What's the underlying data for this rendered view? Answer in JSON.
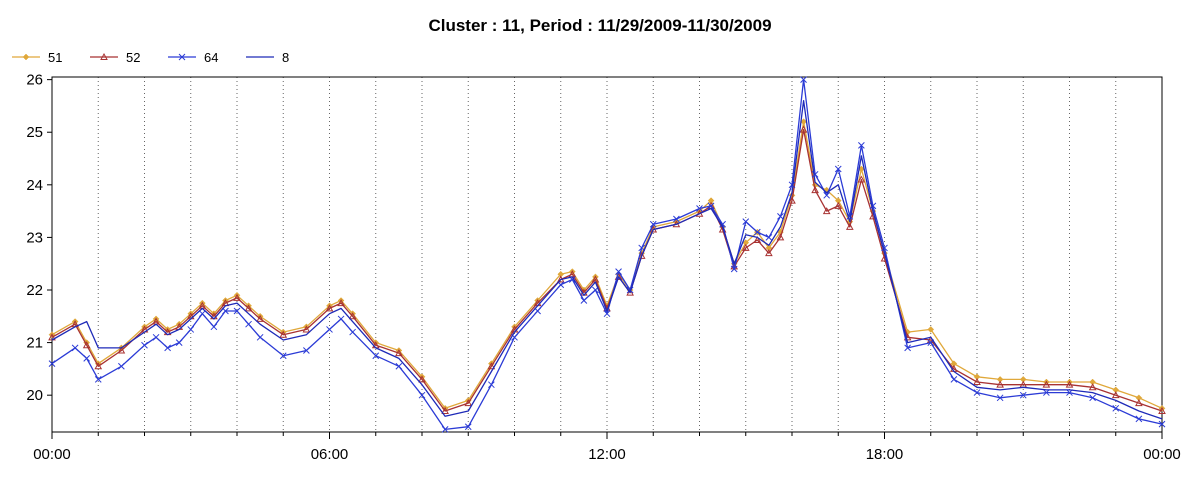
{
  "chart_data": {
    "type": "line",
    "title": "Cluster : 11, Period : 11/29/2009-11/30/2009",
    "xlabel": "",
    "ylabel": "",
    "x_tick_labels": [
      "00:00",
      "06:00",
      "12:00",
      "18:00",
      "00:00"
    ],
    "x_tick_hours": [
      0,
      6,
      12,
      18,
      24
    ],
    "x_range_hours": [
      0,
      24
    ],
    "y_ticks": [
      20,
      21,
      22,
      23,
      24,
      25,
      26
    ],
    "ylim": [
      19.3,
      26.05
    ],
    "grid": "dotted vertical, hourly",
    "legend_position": "top-left",
    "x": [
      0,
      0.5,
      0.75,
      1,
      1.5,
      2,
      2.25,
      2.5,
      2.75,
      3,
      3.25,
      3.5,
      3.75,
      4,
      4.25,
      4.5,
      5,
      5.5,
      6,
      6.25,
      6.5,
      7,
      7.5,
      8,
      8.5,
      9,
      9.5,
      10,
      10.5,
      11,
      11.25,
      11.5,
      11.75,
      12,
      12.25,
      12.5,
      12.75,
      13,
      13.5,
      14,
      14.25,
      14.5,
      14.75,
      15,
      15.25,
      15.5,
      15.75,
      16,
      16.25,
      16.5,
      16.75,
      17,
      17.25,
      17.5,
      17.75,
      18,
      18.5,
      19,
      19.5,
      20,
      20.5,
      21,
      21.5,
      22,
      22.5,
      23,
      23.5,
      24
    ],
    "series": [
      {
        "name": "51",
        "color": "#e0a83a",
        "marker": "diamond",
        "values": [
          21.15,
          21.4,
          21.0,
          20.6,
          20.9,
          21.3,
          21.45,
          21.25,
          21.35,
          21.55,
          21.75,
          21.55,
          21.8,
          21.9,
          21.7,
          21.5,
          21.2,
          21.3,
          21.7,
          21.8,
          21.55,
          21.0,
          20.85,
          20.35,
          19.75,
          19.9,
          20.6,
          21.3,
          21.8,
          22.3,
          22.35,
          22.0,
          22.25,
          21.7,
          22.3,
          22.0,
          22.7,
          23.2,
          23.3,
          23.5,
          23.7,
          23.2,
          22.5,
          22.9,
          23.1,
          22.8,
          23.1,
          23.8,
          25.2,
          24.0,
          23.9,
          23.7,
          23.3,
          24.3,
          23.5,
          22.7,
          21.2,
          21.25,
          20.6,
          20.35,
          20.3,
          20.3,
          20.25,
          20.25,
          20.25,
          20.1,
          19.95,
          19.75
        ]
      },
      {
        "name": "52",
        "color": "#a83232",
        "marker": "triangle",
        "values": [
          21.1,
          21.35,
          20.95,
          20.55,
          20.85,
          21.25,
          21.4,
          21.2,
          21.3,
          21.5,
          21.7,
          21.5,
          21.75,
          21.85,
          21.65,
          21.45,
          21.15,
          21.25,
          21.65,
          21.75,
          21.5,
          20.95,
          20.8,
          20.3,
          19.7,
          19.85,
          20.55,
          21.25,
          21.75,
          22.2,
          22.3,
          21.95,
          22.2,
          21.65,
          22.25,
          21.95,
          22.65,
          23.15,
          23.25,
          23.45,
          23.6,
          23.15,
          22.45,
          22.8,
          22.95,
          22.7,
          23.0,
          23.7,
          25.05,
          23.9,
          23.5,
          23.6,
          23.2,
          24.1,
          23.4,
          22.6,
          21.1,
          21.05,
          20.5,
          20.25,
          20.2,
          20.2,
          20.2,
          20.2,
          20.15,
          20.0,
          19.85,
          19.7
        ]
      },
      {
        "name": "64",
        "color": "#2b3bd6",
        "marker": "x",
        "values": [
          20.6,
          20.9,
          20.7,
          20.3,
          20.55,
          20.95,
          21.1,
          20.9,
          21.0,
          21.25,
          21.55,
          21.3,
          21.6,
          21.6,
          21.35,
          21.1,
          20.75,
          20.85,
          21.25,
          21.45,
          21.2,
          20.75,
          20.55,
          20.0,
          19.35,
          19.4,
          20.2,
          21.1,
          21.6,
          22.1,
          22.2,
          21.8,
          22.0,
          21.55,
          22.35,
          22.0,
          22.8,
          23.25,
          23.35,
          23.55,
          23.6,
          23.25,
          22.4,
          23.3,
          23.1,
          23.0,
          23.4,
          24.0,
          26.0,
          24.2,
          23.8,
          24.3,
          23.4,
          24.75,
          23.6,
          22.8,
          20.9,
          21.0,
          20.3,
          20.05,
          19.95,
          20.0,
          20.05,
          20.05,
          19.95,
          19.75,
          19.55,
          19.45
        ]
      },
      {
        "name": "8",
        "color": "#1e2ab8",
        "marker": "none",
        "values": [
          21.05,
          21.3,
          21.4,
          20.9,
          20.9,
          21.2,
          21.35,
          21.15,
          21.25,
          21.45,
          21.65,
          21.45,
          21.7,
          21.75,
          21.55,
          21.35,
          21.05,
          21.15,
          21.55,
          21.65,
          21.4,
          20.9,
          20.7,
          20.2,
          19.6,
          19.7,
          20.45,
          21.2,
          21.7,
          22.2,
          22.25,
          21.9,
          22.15,
          21.6,
          22.25,
          21.95,
          22.65,
          23.15,
          23.25,
          23.45,
          23.55,
          23.2,
          22.5,
          23.05,
          23.0,
          22.85,
          23.2,
          23.85,
          25.6,
          24.05,
          23.85,
          24.0,
          23.3,
          24.55,
          23.5,
          22.7,
          21.0,
          21.1,
          20.45,
          20.15,
          20.1,
          20.15,
          20.1,
          20.1,
          20.05,
          19.9,
          19.7,
          19.55
        ]
      }
    ]
  }
}
